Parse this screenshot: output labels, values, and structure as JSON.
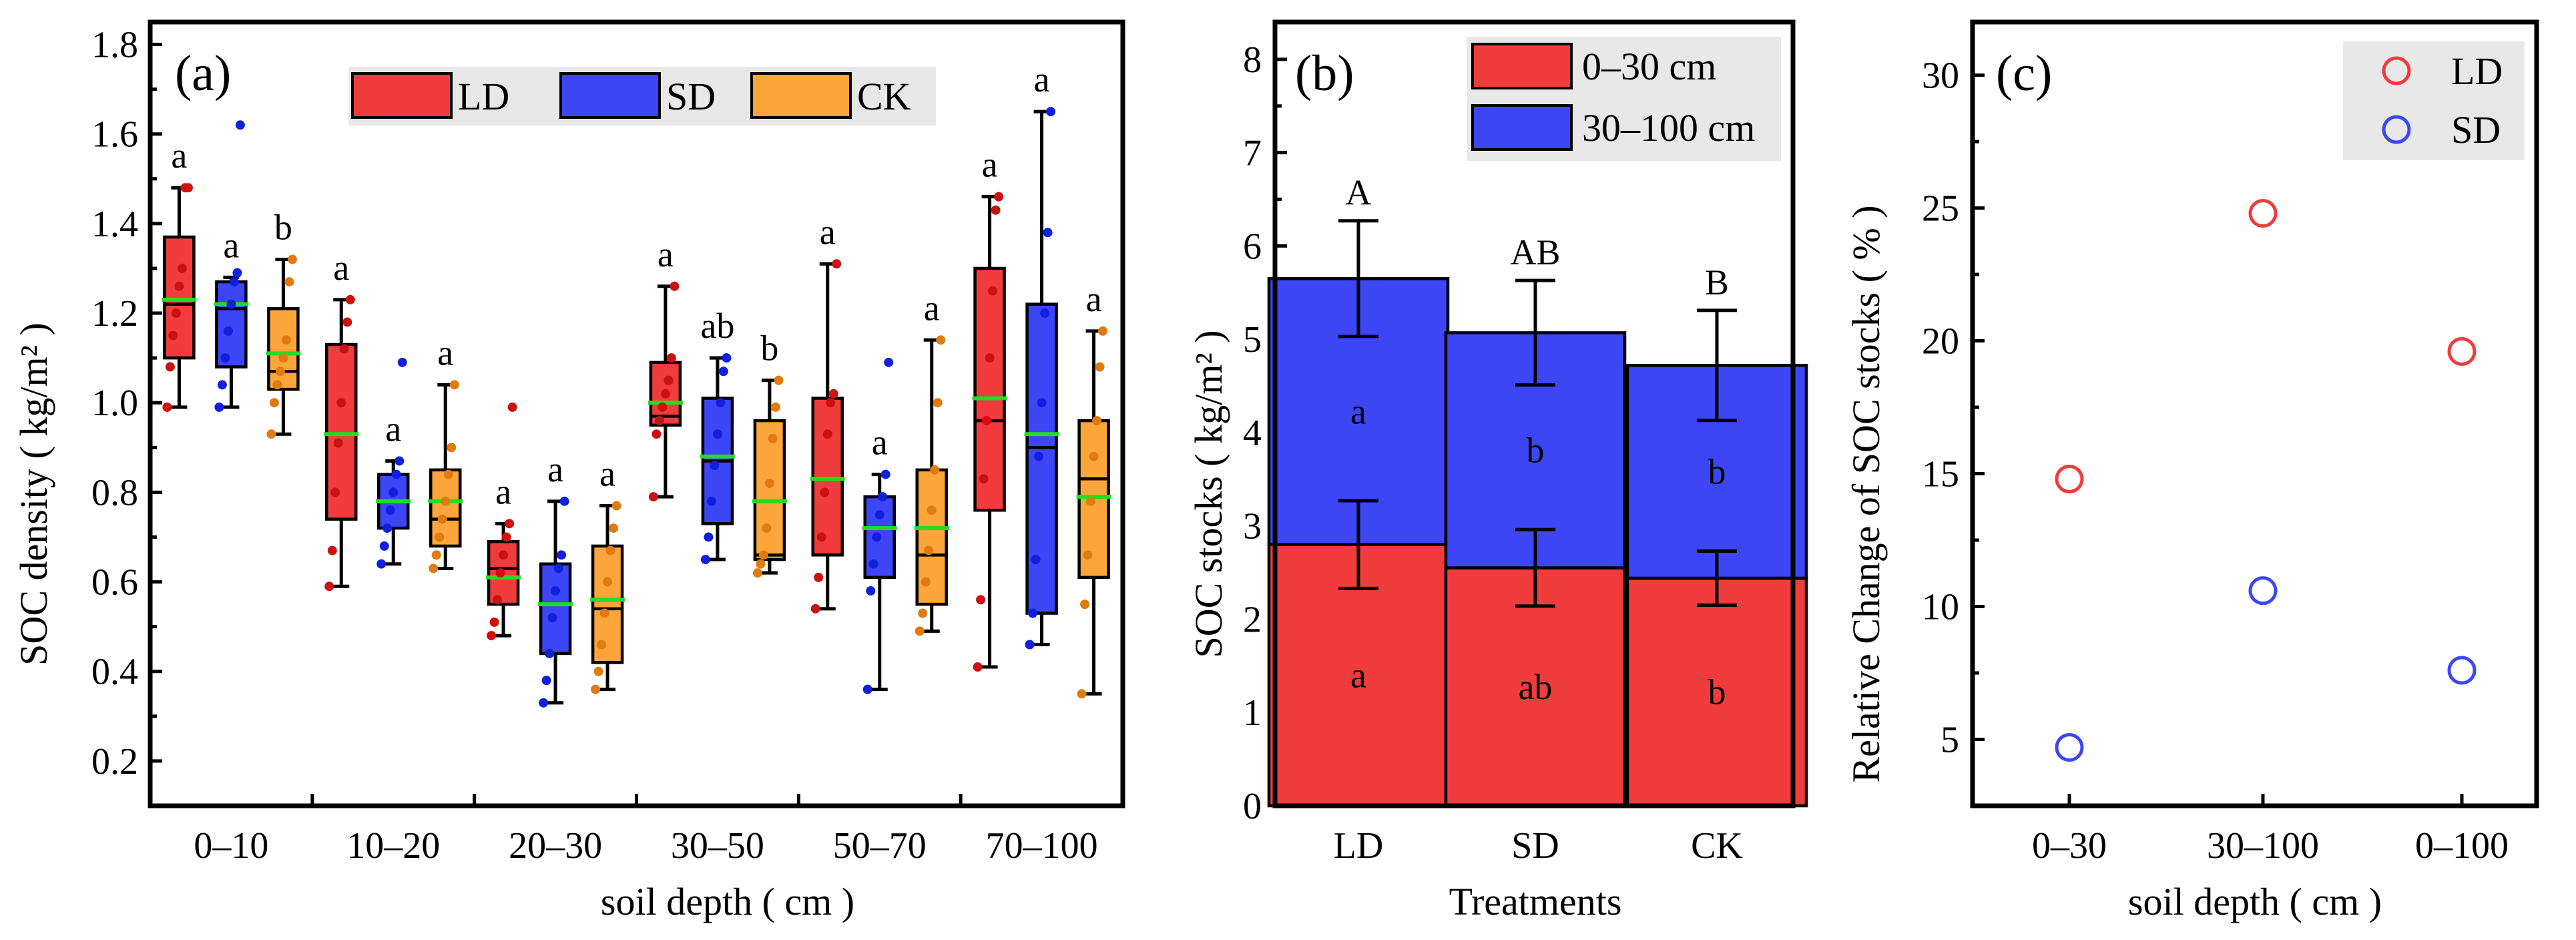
{
  "colors": {
    "LD": "#f03c3c",
    "SD": "#3c46f5",
    "CK": "#fba53a",
    "mean": "#22dd22",
    "legend_bg": "#e8e8e8",
    "LD_dot": "#cc1111",
    "SD_dot": "#1020dd",
    "CK_dot": "#e07b10"
  },
  "chart_data": [
    {
      "panel": "(a)",
      "type": "box",
      "title": "",
      "xlabel": "soil depth ( cm )",
      "ylabel": "SOC density ( kg/m² )",
      "ylim": [
        0.1,
        1.85
      ],
      "yticks": [
        "0.2",
        "0.4",
        "0.6",
        "0.8",
        "1.0",
        "1.2",
        "1.4",
        "1.6",
        "1.8"
      ],
      "categories": [
        "0–10",
        "10–20",
        "20–30",
        "30–50",
        "50–70",
        "70–100"
      ],
      "legend": [
        "LD",
        "SD",
        "CK"
      ],
      "series": [
        {
          "name": "LD",
          "boxes": [
            {
              "min": 0.99,
              "q1": 1.1,
              "median": 1.22,
              "mean": 1.23,
              "q3": 1.37,
              "max": 1.48,
              "points": [
                0.99,
                1.08,
                1.15,
                1.2,
                1.26,
                1.3,
                1.48,
                1.48
              ],
              "label": "a"
            },
            {
              "min": 0.59,
              "q1": 0.74,
              "median": 0.93,
              "mean": 0.93,
              "q3": 1.13,
              "max": 1.23,
              "points": [
                0.59,
                0.67,
                0.8,
                0.91,
                1.0,
                1.12,
                1.18,
                1.23
              ],
              "label": "a"
            },
            {
              "min": 0.48,
              "q1": 0.55,
              "median": 0.63,
              "mean": 0.61,
              "q3": 0.69,
              "max": 0.73,
              "points": [
                0.48,
                0.51,
                0.56,
                0.62,
                0.66,
                0.7,
                0.73,
                0.99
              ],
              "label": "a"
            },
            {
              "min": 0.79,
              "q1": 0.95,
              "median": 0.97,
              "mean": 1.0,
              "q3": 1.09,
              "max": 1.26,
              "points": [
                0.79,
                0.93,
                0.96,
                0.99,
                1.02,
                1.05,
                1.1,
                1.26
              ],
              "label": "a"
            },
            {
              "min": 0.54,
              "q1": 0.66,
              "median": 0.83,
              "mean": 0.83,
              "q3": 1.01,
              "max": 1.31,
              "points": [
                0.54,
                0.61,
                0.7,
                0.8,
                0.93,
                1.0,
                1.02,
                1.31
              ],
              "label": "a"
            },
            {
              "min": 0.41,
              "q1": 0.76,
              "median": 0.96,
              "mean": 1.01,
              "q3": 1.3,
              "max": 1.46,
              "points": [
                0.41,
                0.56,
                0.83,
                0.96,
                1.1,
                1.25,
                1.43,
                1.46
              ],
              "label": "a"
            }
          ]
        },
        {
          "name": "SD",
          "boxes": [
            {
              "min": 0.99,
              "q1": 1.08,
              "median": 1.21,
              "mean": 1.22,
              "q3": 1.27,
              "max": 1.28,
              "points": [
                0.99,
                1.04,
                1.1,
                1.16,
                1.22,
                1.27,
                1.29,
                1.62
              ],
              "label": "a"
            },
            {
              "min": 0.64,
              "q1": 0.72,
              "median": 0.78,
              "mean": 0.78,
              "q3": 0.84,
              "max": 0.87,
              "points": [
                0.64,
                0.68,
                0.72,
                0.76,
                0.8,
                0.84,
                0.87,
                1.09
              ],
              "label": "a"
            },
            {
              "min": 0.33,
              "q1": 0.44,
              "median": 0.55,
              "mean": 0.55,
              "q3": 0.64,
              "max": 0.78,
              "points": [
                0.33,
                0.38,
                0.44,
                0.52,
                0.58,
                0.63,
                0.66,
                0.78
              ],
              "label": "a"
            },
            {
              "min": 0.65,
              "q1": 0.73,
              "median": 0.87,
              "mean": 0.88,
              "q3": 1.01,
              "max": 1.1,
              "points": [
                0.65,
                0.7,
                0.78,
                0.86,
                0.93,
                1.0,
                1.07,
                1.1
              ],
              "label": "ab"
            },
            {
              "min": 0.36,
              "q1": 0.61,
              "median": 0.72,
              "mean": 0.72,
              "q3": 0.79,
              "max": 0.84,
              "points": [
                0.36,
                0.58,
                0.64,
                0.7,
                0.75,
                0.79,
                0.84,
                1.09
              ],
              "label": "a"
            },
            {
              "min": 0.46,
              "q1": 0.53,
              "median": 0.9,
              "mean": 0.93,
              "q3": 1.22,
              "max": 1.65,
              "points": [
                0.46,
                0.53,
                0.65,
                0.88,
                1.0,
                1.2,
                1.38,
                1.65
              ],
              "label": "a"
            }
          ]
        },
        {
          "name": "CK",
          "boxes": [
            {
              "min": 0.93,
              "q1": 1.03,
              "median": 1.07,
              "mean": 1.11,
              "q3": 1.21,
              "max": 1.32,
              "points": [
                0.93,
                1.0,
                1.04,
                1.07,
                1.1,
                1.14,
                1.27,
                1.32
              ],
              "label": "b"
            },
            {
              "min": 0.63,
              "q1": 0.68,
              "median": 0.74,
              "mean": 0.78,
              "q3": 0.85,
              "max": 1.04,
              "points": [
                0.63,
                0.66,
                0.7,
                0.74,
                0.78,
                0.84,
                0.9,
                1.04
              ],
              "label": "a"
            },
            {
              "min": 0.36,
              "q1": 0.42,
              "median": 0.54,
              "mean": 0.56,
              "q3": 0.68,
              "max": 0.77,
              "points": [
                0.36,
                0.4,
                0.46,
                0.53,
                0.6,
                0.67,
                0.72,
                0.77
              ],
              "label": "a"
            },
            {
              "min": 0.62,
              "q1": 0.65,
              "median": 0.66,
              "mean": 0.78,
              "q3": 0.96,
              "max": 1.05,
              "points": [
                0.62,
                0.64,
                0.66,
                0.72,
                0.82,
                0.92,
                0.99,
                1.05
              ],
              "label": "b"
            },
            {
              "min": 0.49,
              "q1": 0.55,
              "median": 0.66,
              "mean": 0.72,
              "q3": 0.85,
              "max": 1.14,
              "points": [
                0.49,
                0.53,
                0.6,
                0.67,
                0.76,
                0.85,
                1.0,
                1.14
              ],
              "label": "a"
            },
            {
              "min": 0.35,
              "q1": 0.61,
              "median": 0.83,
              "mean": 0.79,
              "q3": 0.96,
              "max": 1.16,
              "points": [
                0.35,
                0.55,
                0.66,
                0.78,
                0.88,
                0.96,
                1.08,
                1.16
              ],
              "label": "a"
            }
          ]
        }
      ]
    },
    {
      "panel": "(b)",
      "type": "stacked-bar",
      "title": "",
      "xlabel": "Treatments",
      "ylabel": "SOC stocks ( kg/m² )",
      "ylim": [
        0,
        8.4
      ],
      "yticks": [
        "0",
        "1",
        "2",
        "3",
        "4",
        "5",
        "6",
        "7",
        "8"
      ],
      "categories": [
        "LD",
        "SD",
        "CK"
      ],
      "legend": [
        "0–30 cm",
        "30–100 cm"
      ],
      "series": [
        {
          "name": "0–30 cm",
          "values": [
            2.8,
            2.55,
            2.44
          ],
          "errors": [
            0.47,
            0.41,
            0.29
          ],
          "labels": [
            "a",
            "ab",
            "b"
          ]
        },
        {
          "name": "30–100 cm",
          "values": [
            2.85,
            2.52,
            2.28
          ],
          "errors": [
            0.62,
            0.56,
            0.59
          ],
          "labels": [
            "a",
            "b",
            "b"
          ]
        }
      ],
      "total_labels": [
        "A",
        "AB",
        "B"
      ]
    },
    {
      "panel": "(c)",
      "type": "scatter",
      "title": "",
      "xlabel": "soil depth ( cm )",
      "ylabel": "Relative Change of SOC stocks ( % )",
      "ylim": [
        2.5,
        32
      ],
      "yticks": [
        "5",
        "10",
        "15",
        "20",
        "25",
        "30"
      ],
      "categories": [
        "0–30",
        "30–100",
        "0–100"
      ],
      "legend": [
        "LD",
        "SD"
      ],
      "series": [
        {
          "name": "LD",
          "values": [
            14.8,
            24.8,
            19.6
          ]
        },
        {
          "name": "SD",
          "values": [
            4.7,
            10.6,
            7.6
          ]
        }
      ]
    }
  ]
}
